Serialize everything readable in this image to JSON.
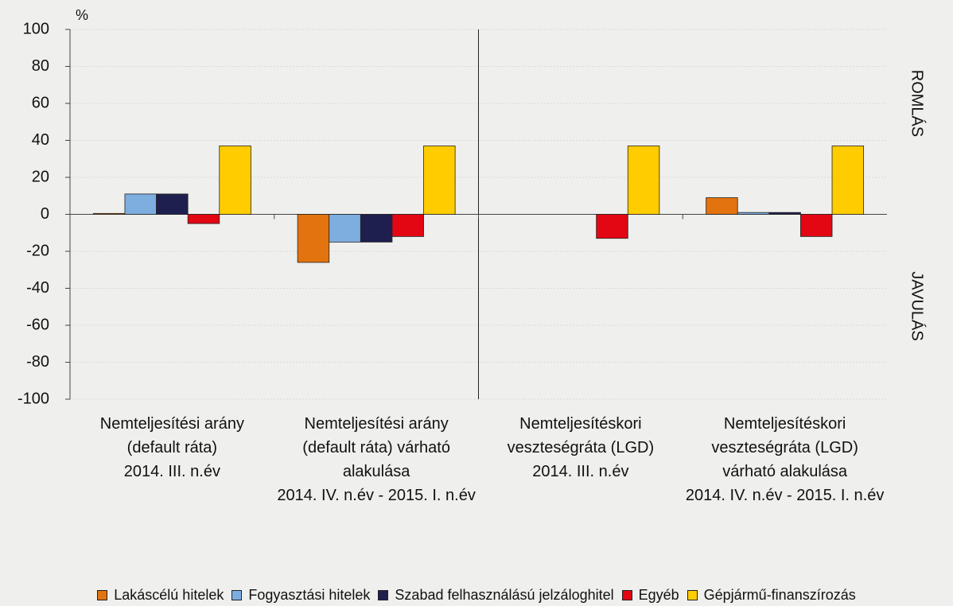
{
  "chart_data": {
    "type": "bar",
    "y_unit": "%",
    "annotations": [
      "ROMLÁS",
      "JAVULÁS"
    ],
    "categories": [
      "Nemteljesítési arány (default ráta)\n2014. III. n.év",
      "Nemteljesítési arány (default ráta) várható alakulása\n2014. IV. n.év - 2015. I. n.év",
      "Nemteljesítéskori veszteségráta (LGD)\n2014. III. n.év",
      "Nemteljesítéskori veszteségráta (LGD) várható alakulása\n2014. IV. n.év - 2015. I. n.év"
    ],
    "series": [
      {
        "name": "Lakáscélú hitelek",
        "color": "#e2730f",
        "values": [
          0.5,
          -26,
          0,
          9
        ]
      },
      {
        "name": "Fogyasztási hitelek",
        "color": "#7eaee0",
        "values": [
          11,
          -15,
          0,
          1
        ]
      },
      {
        "name": "Szabad felhasználású jelzáloghitel",
        "color": "#1f1f4f",
        "values": [
          11,
          -15,
          0,
          1
        ]
      },
      {
        "name": "Egyéb",
        "color": "#e30613",
        "values": [
          -5,
          -12,
          -13,
          -12
        ]
      },
      {
        "name": "Gépjármű-finanszírozás",
        "color": "#ffcc00",
        "values": [
          37,
          37,
          37,
          37
        ]
      }
    ],
    "ylim": [
      -100,
      100
    ],
    "yticks": [
      -100,
      -80,
      -60,
      -40,
      -20,
      0,
      20,
      40,
      60,
      80,
      100
    ],
    "grid": true
  }
}
